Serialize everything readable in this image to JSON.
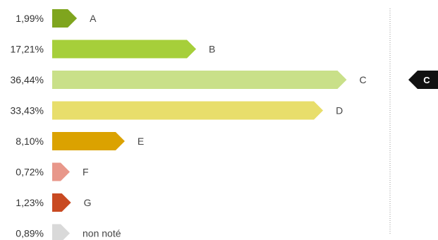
{
  "chart_data": {
    "type": "bar",
    "orientation": "horizontal",
    "categories": [
      "A",
      "B",
      "C",
      "D",
      "E",
      "F",
      "G",
      "non noté"
    ],
    "values": [
      1.99,
      17.21,
      36.44,
      33.43,
      8.1,
      0.72,
      1.23,
      0.89
    ],
    "value_labels": [
      "1,99%",
      "17,21%",
      "36,44%",
      "33,43%",
      "8,10%",
      "0,72%",
      "1,23%",
      "0,89%"
    ],
    "colors": [
      "#7fa51e",
      "#a6cf3a",
      "#c9e089",
      "#e8de6b",
      "#dba200",
      "#e8978a",
      "#c94a22",
      "#d9d9d9"
    ],
    "title": "",
    "xlabel": "",
    "ylabel": "",
    "grid": false
  },
  "marker": {
    "label": "C",
    "color": "#111111",
    "guide_line_color": "#999999"
  }
}
